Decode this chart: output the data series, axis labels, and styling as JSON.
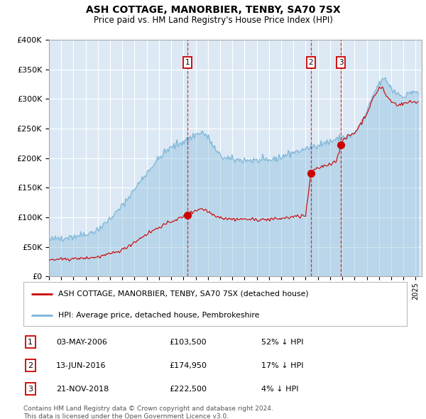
{
  "title": "ASH COTTAGE, MANORBIER, TENBY, SA70 7SX",
  "subtitle": "Price paid vs. HM Land Registry's House Price Index (HPI)",
  "bg_color": "#dce9f5",
  "plot_bg_color": "#dce9f5",
  "red_color": "#cc0000",
  "blue_color": "#7ab4d8",
  "grid_color": "#ffffff",
  "ylabel_ticks": [
    "£0",
    "£50K",
    "£100K",
    "£150K",
    "£200K",
    "£250K",
    "£300K",
    "£350K",
    "£400K"
  ],
  "ylabel_values": [
    0,
    50000,
    100000,
    150000,
    200000,
    250000,
    300000,
    350000,
    400000
  ],
  "xlim_start": 1995.0,
  "xlim_end": 2025.5,
  "ylim_min": 0,
  "ylim_max": 400000,
  "sale_dates": [
    2006.33,
    2016.44,
    2018.89
  ],
  "sale_prices": [
    103500,
    174950,
    222500
  ],
  "sale_labels": [
    "1",
    "2",
    "3"
  ],
  "legend_red": "ASH COTTAGE, MANORBIER, TENBY, SA70 7SX (detached house)",
  "legend_blue": "HPI: Average price, detached house, Pembrokeshire",
  "table_rows": [
    [
      "1",
      "03-MAY-2006",
      "£103,500",
      "52% ↓ HPI"
    ],
    [
      "2",
      "13-JUN-2016",
      "£174,950",
      "17% ↓ HPI"
    ],
    [
      "3",
      "21-NOV-2018",
      "£222,500",
      "4% ↓ HPI"
    ]
  ],
  "footer": "Contains HM Land Registry data © Crown copyright and database right 2024.\nThis data is licensed under the Open Government Licence v3.0."
}
